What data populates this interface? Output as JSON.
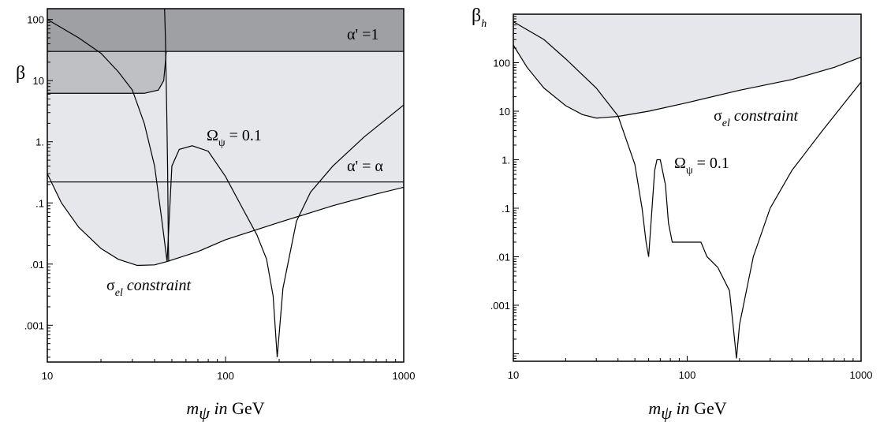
{
  "chart_data": [
    {
      "type": "line",
      "ylabel": "β",
      "xlabel": {
        "m": "m",
        "sub": "ψ",
        "in": "in",
        "unit": "GeV"
      },
      "xscale": "log",
      "yscale": "log",
      "xlim": [
        10,
        1000
      ],
      "ylim": [
        0.00025,
        150
      ],
      "x_ticks": [
        {
          "v": 10,
          "label": "10"
        },
        {
          "v": 100,
          "label": "100"
        },
        {
          "v": 1000,
          "label": "1000"
        }
      ],
      "y_ticks": [
        {
          "v": 100,
          "label": "100"
        },
        {
          "v": 10,
          "label": "10"
        },
        {
          "v": 1,
          "label": "1."
        },
        {
          "v": 0.1,
          "label": ".1"
        },
        {
          "v": 0.01,
          "label": ".01"
        },
        {
          "v": 0.001,
          "label": ".001"
        }
      ],
      "regions": [
        {
          "name": "sigma_el_excluded",
          "fill": "#e6e7ea",
          "boundary": [
            [
              10,
              0.3
            ],
            [
              12,
              0.1
            ],
            [
              15,
              0.04
            ],
            [
              20,
              0.018
            ],
            [
              25,
              0.012
            ],
            [
              32,
              0.0095
            ],
            [
              40,
              0.0097
            ],
            [
              47,
              0.011
            ],
            [
              70,
              0.016
            ],
            [
              100,
              0.025
            ],
            [
              200,
              0.048
            ],
            [
              400,
              0.09
            ],
            [
              700,
              0.14
            ],
            [
              1000,
              0.18
            ]
          ]
        },
        {
          "name": "upper_left_block",
          "fill": "#bfc0c4",
          "boundary": [
            [
              10,
              6.2
            ],
            [
              35,
              6.2
            ],
            [
              42,
              7
            ],
            [
              45,
              10
            ],
            [
              46,
              20
            ],
            [
              46.5,
              30
            ]
          ]
        },
        {
          "name": "alpha_prime_1_band",
          "fill": "#9fa0a4",
          "y_from": 30
        }
      ],
      "hlines": [
        {
          "y": 30,
          "label": "α' =1"
        },
        {
          "y": 0.22,
          "label": "α' = α"
        }
      ],
      "series": [
        {
          "points": [
            [
              10,
              100
            ],
            [
              15,
              50
            ],
            [
              20,
              28
            ],
            [
              25,
              14
            ],
            [
              30,
              7
            ],
            [
              35,
              2
            ],
            [
              40,
              0.4
            ],
            [
              44,
              0.05
            ],
            [
              47,
              0.011
            ],
            [
              50,
              0.4
            ],
            [
              55,
              0.75
            ],
            [
              65,
              0.86
            ],
            [
              80,
              0.7
            ],
            [
              100,
              0.27
            ],
            [
              120,
              0.1
            ],
            [
              150,
              0.03
            ],
            [
              170,
              0.012
            ],
            [
              185,
              0.003
            ],
            [
              195,
              0.0003
            ],
            [
              210,
              0.004
            ],
            [
              250,
              0.05
            ],
            [
              300,
              0.15
            ],
            [
              400,
              0.4
            ],
            [
              600,
              1.2
            ],
            [
              1000,
              4
            ]
          ]
        },
        {
          "points": [
            [
              45.5,
              150
            ],
            [
              46,
              50
            ],
            [
              46.8,
              3
            ],
            [
              47.3,
              0.4
            ],
            [
              47.8,
              0.02
            ],
            [
              48,
              0.011
            ]
          ]
        }
      ],
      "annotations": [
        {
          "text": "Ω",
          "sub": "ψ",
          "rest": " = 0.1"
        },
        {
          "text": "σ",
          "sub": "el",
          "rest": " constraint"
        }
      ]
    },
    {
      "type": "line",
      "ylabel": "β",
      "ylabel_sub": "h",
      "xlabel": {
        "m": "m",
        "sub": "ψ",
        "in": "in",
        "unit": "GeV"
      },
      "xscale": "log",
      "yscale": "log",
      "xlim": [
        10,
        1000
      ],
      "ylim": [
        7e-05,
        1000
      ],
      "x_ticks": [
        {
          "v": 10,
          "label": "10"
        },
        {
          "v": 100,
          "label": "100"
        },
        {
          "v": 1000,
          "label": "1000"
        }
      ],
      "y_ticks": [
        {
          "v": 100,
          "label": "100"
        },
        {
          "v": 10,
          "label": "10"
        },
        {
          "v": 1,
          "label": "1."
        },
        {
          "v": 0.1,
          "label": ".1"
        },
        {
          "v": 0.01,
          "label": ".01"
        },
        {
          "v": 0.001,
          "label": ".001"
        }
      ],
      "regions": [
        {
          "name": "sigma_el_excluded",
          "fill": "#e6e7ea",
          "boundary": [
            [
              10,
              230
            ],
            [
              12,
              80
            ],
            [
              15,
              30
            ],
            [
              20,
              13
            ],
            [
              25,
              8.5
            ],
            [
              30,
              7.2
            ],
            [
              40,
              7.8
            ],
            [
              60,
              10
            ],
            [
              100,
              15
            ],
            [
              200,
              27
            ],
            [
              400,
              45
            ],
            [
              700,
              80
            ],
            [
              1000,
              130
            ]
          ]
        }
      ],
      "series": [
        {
          "points": [
            [
              10,
              700
            ],
            [
              15,
              300
            ],
            [
              20,
              120
            ],
            [
              30,
              30
            ],
            [
              40,
              8
            ],
            [
              50,
              0.8
            ],
            [
              55,
              0.1
            ],
            [
              58,
              0.02
            ],
            [
              60,
              0.01
            ],
            [
              65,
              0.6
            ],
            [
              67,
              1.0
            ],
            [
              70,
              1.0
            ],
            [
              75,
              0.3
            ],
            [
              78,
              0.05
            ],
            [
              82,
              0.02
            ],
            [
              100,
              0.02
            ],
            [
              120,
              0.02
            ],
            [
              130,
              0.01
            ],
            [
              150,
              0.006
            ],
            [
              175,
              0.002
            ],
            [
              185,
              0.0003
            ],
            [
              192,
              8e-05
            ],
            [
              200,
              0.0004
            ],
            [
              240,
              0.01
            ],
            [
              300,
              0.1
            ],
            [
              400,
              0.6
            ],
            [
              600,
              4
            ],
            [
              1000,
              40
            ]
          ]
        }
      ],
      "annotations": [
        {
          "text": "Ω",
          "sub": "ψ",
          "rest": " = 0.1"
        },
        {
          "text": "σ",
          "sub": "el",
          "rest": " constraint"
        }
      ]
    }
  ]
}
